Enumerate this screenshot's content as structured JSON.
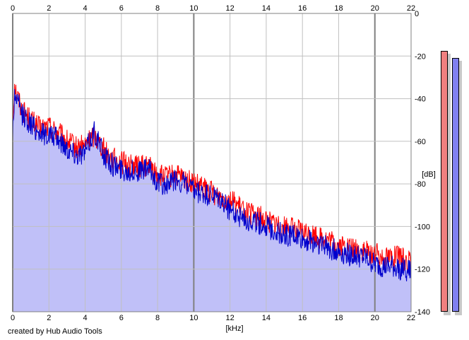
{
  "chart_data": {
    "type": "area",
    "xlabel": "[kHz]",
    "ylabel": "[dB]",
    "xlim": [
      0,
      22
    ],
    "ylim": [
      -140,
      0
    ],
    "x_ticks": [
      "0",
      "2",
      "4",
      "6",
      "8",
      "10",
      "12",
      "14",
      "16",
      "18",
      "20",
      "22"
    ],
    "y_ticks": [
      "0",
      "-20",
      "-40",
      "-60",
      "-80",
      "-100",
      "-120",
      "-140"
    ],
    "grid": true,
    "colors": {
      "series_left": "#ff0000",
      "series_right": "#0000cc",
      "fill": "#c0c0f8",
      "grid": "#c0c0c0",
      "grid_major": "#808080",
      "meter_left": "#f08080",
      "meter_right": "#8080f0"
    },
    "series": [
      {
        "x": [
          0.0,
          0.1,
          0.2,
          0.5,
          1.0,
          1.5,
          2.0,
          2.5,
          3.0,
          3.5,
          4.0,
          4.5,
          5.0,
          5.5,
          6.0,
          6.5,
          7.0,
          7.5,
          8.0,
          8.5,
          9.0,
          9.5,
          10.0,
          10.5,
          11.0,
          11.5,
          12.0,
          12.5,
          13.0,
          13.5,
          14.0,
          14.5,
          15.0,
          15.5,
          16.0,
          16.5,
          17.0,
          17.5,
          18.0,
          18.5,
          19.0,
          19.5,
          20.0,
          20.5,
          21.0,
          21.5,
          22.0
        ],
        "values": [
          -50,
          -33,
          -37,
          -45,
          -50,
          -54,
          -53,
          -56,
          -60,
          -63,
          -62,
          -57,
          -63,
          -68,
          -70,
          -71,
          -72,
          -71,
          -76,
          -77,
          -76,
          -78,
          -80,
          -82,
          -84,
          -86,
          -87,
          -91,
          -94,
          -95,
          -97,
          -99,
          -100,
          -101,
          -103,
          -104,
          -105,
          -107,
          -109,
          -110,
          -111,
          -112,
          -113,
          -114,
          -114,
          -115,
          -117
        ]
      },
      {
        "x": [
          0.0,
          0.1,
          0.2,
          0.5,
          1.0,
          1.5,
          2.0,
          2.5,
          3.0,
          3.5,
          4.0,
          4.5,
          5.0,
          5.5,
          6.0,
          6.5,
          7.0,
          7.5,
          8.0,
          8.5,
          9.0,
          9.5,
          10.0,
          10.5,
          11.0,
          11.5,
          12.0,
          12.5,
          13.0,
          13.5,
          14.0,
          14.5,
          15.0,
          15.5,
          16.0,
          16.5,
          17.0,
          17.5,
          18.0,
          18.5,
          19.0,
          19.5,
          20.0,
          20.5,
          21.0,
          21.5,
          22.0
        ],
        "values": [
          -58,
          -38,
          -40,
          -47,
          -52,
          -56,
          -57,
          -59,
          -63,
          -66,
          -65,
          -55,
          -66,
          -71,
          -73,
          -74,
          -74,
          -73,
          -79,
          -81,
          -78,
          -80,
          -84,
          -85,
          -86,
          -88,
          -92,
          -95,
          -97,
          -98,
          -100,
          -102,
          -104,
          -104,
          -106,
          -107,
          -108,
          -110,
          -112,
          -113,
          -114,
          -115,
          -118,
          -119,
          -119,
          -120,
          -121
        ]
      }
    ]
  },
  "credit": "created by Hub Audio Tools"
}
